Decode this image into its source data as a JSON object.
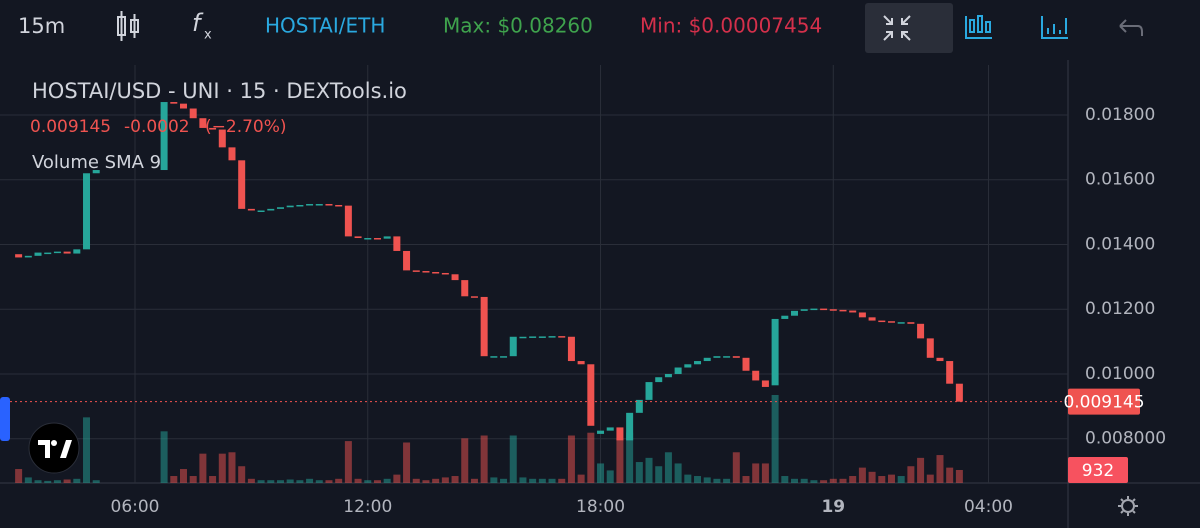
{
  "toolbar": {
    "interval": "15m",
    "pair": "HOSTAI/ETH",
    "max": "Max: $0.08260",
    "min": "Min: $0.00007454"
  },
  "chart_data": {
    "type": "candlestick",
    "title": "HOSTAI/USD - UNI · 15 · DEXTools.io",
    "change": "-0.0002",
    "change_percent": "(−2.70%)",
    "volume_title": "Volume SMA 9",
    "up_color": "#26a69a",
    "down_color": "#ef5350",
    "grid": true,
    "xlim": [
      2.52,
      30.05
    ],
    "xticks": [
      {
        "value": 6,
        "label": "06:00"
      },
      {
        "value": 12,
        "label": "12:00"
      },
      {
        "value": 18,
        "label": "18:00"
      },
      {
        "value": 24,
        "label": "19"
      },
      {
        "value": 28,
        "label": "04:00"
      }
    ],
    "ylim": [
      0.006633,
      0.019544
    ],
    "yticks": [
      {
        "value": 0.008,
        "label": "0.008000"
      },
      {
        "value": 0.01,
        "label": "0.01000"
      },
      {
        "value": 0.012,
        "label": "0.01200"
      },
      {
        "value": 0.014,
        "label": "0.01400"
      },
      {
        "value": 0.016,
        "label": "0.01600"
      },
      {
        "value": 0.018,
        "label": "0.01800"
      }
    ],
    "x": [
      3,
      3.25,
      3.5,
      3.75,
      4,
      4.25,
      4.5,
      4.75,
      5,
      5.25,
      5.5,
      5.75,
      6,
      6.25,
      6.5,
      6.75,
      7,
      7.25,
      7.5,
      7.75,
      8,
      8.25,
      8.5,
      8.75,
      9,
      9.25,
      9.5,
      9.75,
      10,
      10.25,
      10.5,
      10.75,
      11,
      11.25,
      11.5,
      11.75,
      12,
      12.25,
      12.5,
      12.75,
      13,
      13.25,
      13.5,
      13.75,
      14,
      14.25,
      14.5,
      14.75,
      15,
      15.25,
      15.5,
      15.75,
      16,
      16.25,
      16.5,
      16.75,
      17,
      17.25,
      17.5,
      17.75,
      18,
      18.25,
      18.5,
      18.75,
      19,
      19.25,
      19.5,
      19.75,
      20,
      20.25,
      20.5,
      20.75,
      21,
      21.25,
      21.5,
      21.75,
      22,
      22.25,
      22.5,
      22.75,
      23,
      23.25,
      23.5,
      23.75,
      24,
      24.25,
      24.5,
      24.75,
      25,
      25.25,
      25.5,
      25.75,
      26,
      26.25,
      26.5,
      26.75,
      27,
      27.25
    ],
    "open": [
      0.0137,
      0.0136,
      0.01365,
      0.01375,
      0.01375,
      0.01378,
      0.01372,
      0.01385,
      0.0162,
      null,
      null,
      null,
      null,
      null,
      null,
      0.0163,
      0.0184,
      0.01835,
      0.0182,
      0.0179,
      0.0176,
      0.01755,
      0.017,
      0.0166,
      0.0151,
      0.01505,
      0.01505,
      0.0151,
      0.01515,
      0.0152,
      0.01522,
      0.01525,
      0.01525,
      0.01522,
      0.0152,
      0.01425,
      0.0142,
      0.0142,
      0.01418,
      0.01425,
      0.0138,
      0.0132,
      0.01318,
      0.01315,
      0.01312,
      0.01308,
      0.0129,
      0.0124,
      0.01238,
      0.01055,
      0.01055,
      0.01055,
      0.01115,
      0.01115,
      0.01116,
      0.01116,
      0.01117,
      0.01115,
      0.0104,
      0.0103,
      0.00815,
      0.00825,
      0.00835,
      0.00795,
      0.0088,
      0.0092,
      0.00975,
      0.0099,
      0.01,
      0.0102,
      0.0103,
      0.0104,
      0.0105,
      0.01055,
      0.01055,
      0.0105,
      0.0101,
      0.0098,
      0.00965,
      0.0117,
      0.0118,
      0.01195,
      0.012,
      0.01202,
      0.012,
      0.01198,
      0.01196,
      0.0119,
      0.01175,
      0.01165,
      0.01163,
      0.0116,
      0.0116,
      0.01155,
      0.0111,
      0.0105,
      0.0104,
      0.0097
    ],
    "close": [
      0.0136,
      0.01365,
      0.01375,
      0.01375,
      0.01378,
      0.01372,
      0.01385,
      0.0162,
      0.0163,
      null,
      null,
      null,
      null,
      null,
      null,
      0.0184,
      0.01835,
      0.0182,
      0.0179,
      0.0176,
      0.01755,
      0.017,
      0.0166,
      0.0151,
      0.01505,
      0.01505,
      0.0151,
      0.01515,
      0.0152,
      0.01522,
      0.01525,
      0.01525,
      0.01522,
      0.0152,
      0.01425,
      0.0142,
      0.0142,
      0.01418,
      0.01425,
      0.0138,
      0.0132,
      0.01318,
      0.01315,
      0.01312,
      0.01308,
      0.0129,
      0.0124,
      0.01238,
      0.01055,
      0.01055,
      0.01055,
      0.01115,
      0.01115,
      0.01116,
      0.01116,
      0.01117,
      0.01115,
      0.0104,
      0.0103,
      0.0084,
      0.00825,
      0.00835,
      0.00795,
      0.0088,
      0.0092,
      0.00975,
      0.0099,
      0.01,
      0.0102,
      0.0103,
      0.0104,
      0.0105,
      0.01055,
      0.01055,
      0.0105,
      0.0101,
      0.0098,
      0.0096,
      0.0117,
      0.0118,
      0.01195,
      0.012,
      0.01202,
      0.012,
      0.01198,
      0.01196,
      0.0119,
      0.01175,
      0.01165,
      0.01163,
      0.0116,
      0.0116,
      0.01155,
      0.0111,
      0.0105,
      0.0104,
      0.0097,
      0.009145
    ],
    "volume": [
      1000,
      400,
      200,
      150,
      200,
      250,
      300,
      4700,
      200,
      null,
      null,
      null,
      null,
      null,
      null,
      3700,
      500,
      1000,
      500,
      2100,
      500,
      2100,
      2200,
      1200,
      300,
      200,
      200,
      200,
      250,
      200,
      300,
      200,
      200,
      300,
      3000,
      300,
      200,
      200,
      300,
      600,
      2900,
      300,
      200,
      300,
      400,
      500,
      3200,
      300,
      3400,
      400,
      300,
      3400,
      400,
      300,
      300,
      300,
      300,
      3400,
      600,
      3600,
      1400,
      900,
      3200,
      3600,
      1500,
      1800,
      1200,
      2200,
      1400,
      600,
      500,
      400,
      300,
      300,
      2200,
      500,
      1400,
      1400,
      6300,
      500,
      300,
      300,
      200,
      200,
      300,
      300,
      500,
      1100,
      800,
      500,
      600,
      500,
      1200,
      1800,
      600,
      2000,
      1100,
      932
    ]
  }
}
